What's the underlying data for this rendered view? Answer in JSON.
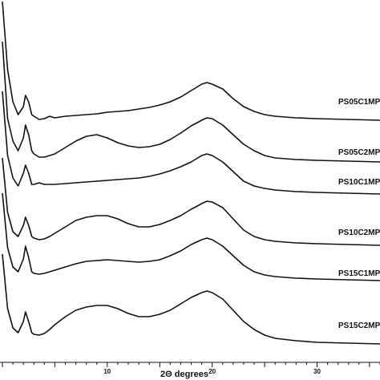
{
  "chart_data": {
    "type": "line",
    "title": "",
    "xlabel": "2Θ degrees",
    "ylabel": "",
    "xlim": [
      0,
      36
    ],
    "x_ticks": [
      10,
      20,
      30
    ],
    "x_tick_labels": [
      "10",
      "20",
      "30"
    ],
    "grid": false,
    "legend": "none",
    "colors": {
      "line": "#111111",
      "background": "#ffffff"
    },
    "series": [
      {
        "name": "PS05C1MP",
        "x": [
          0,
          0.5,
          1,
          1.5,
          2,
          2.2,
          2.5,
          2.8,
          3,
          3.5,
          4,
          4.5,
          5,
          6,
          7,
          8,
          9,
          10,
          11,
          12,
          13,
          14,
          15,
          16,
          17,
          18,
          19,
          19.5,
          20,
          21,
          22,
          23,
          24,
          25,
          26,
          28,
          30,
          33,
          36
        ],
        "y": [
          100,
          40,
          20,
          12,
          17,
          24,
          20,
          12,
          11,
          9,
          9.5,
          11,
          10,
          11,
          11.5,
          12,
          12.5,
          13.5,
          14,
          14.5,
          15.5,
          16.5,
          18,
          20,
          23,
          27,
          31,
          32,
          31,
          28,
          22,
          17,
          14,
          12,
          11,
          10,
          9.5,
          9,
          8.5
        ]
      },
      {
        "name": "PS05C2MP",
        "x": [
          0,
          0.5,
          1,
          1.5,
          2,
          2.2,
          2.5,
          2.8,
          3,
          3.5,
          4,
          4.5,
          5,
          6,
          7,
          8,
          9,
          10,
          11,
          12,
          13,
          14,
          15,
          16,
          17,
          18,
          19,
          19.5,
          20,
          21,
          22,
          23,
          24,
          25,
          26,
          28,
          30,
          33,
          36
        ],
        "y": [
          80,
          32,
          18,
          12,
          20,
          28,
          22,
          12,
          10,
          8,
          8,
          9,
          10,
          14,
          18,
          21,
          22,
          20,
          17,
          15,
          14,
          14.5,
          16,
          19,
          23,
          27.5,
          31,
          32.5,
          32,
          28,
          22,
          16,
          12,
          9,
          7.5,
          6.5,
          6,
          5.5,
          5
        ]
      },
      {
        "name": "PS10C1MP",
        "x": [
          0,
          0.5,
          1,
          1.5,
          2,
          2.2,
          2.5,
          2.8,
          3,
          3.5,
          4,
          4.5,
          5,
          6,
          7,
          8,
          9,
          10,
          11,
          12,
          13,
          14,
          15,
          16,
          17,
          18,
          19,
          19.5,
          20,
          21,
          22,
          23,
          24,
          25,
          26,
          28,
          30,
          33,
          36
        ],
        "y": [
          70,
          30,
          16,
          11,
          19,
          24,
          19,
          12,
          12,
          13,
          12,
          12,
          12,
          12.5,
          13,
          13.5,
          14,
          14.5,
          15,
          15.5,
          16,
          17,
          18.5,
          20.5,
          23,
          26,
          30,
          31,
          30,
          26,
          20,
          14,
          11,
          9.5,
          8.5,
          7.5,
          7,
          6.5,
          6
        ]
      },
      {
        "name": "PS10C2MP",
        "x": [
          0,
          0.5,
          1,
          1.5,
          2,
          2.2,
          2.5,
          2.8,
          3,
          3.5,
          4,
          4.5,
          5,
          6,
          7,
          8,
          9,
          10,
          11,
          12,
          13,
          14,
          15,
          16,
          17,
          18,
          19,
          19.5,
          20,
          21,
          22,
          23,
          24,
          25,
          26,
          28,
          30,
          33,
          36
        ],
        "y": [
          60,
          26,
          14,
          11,
          18,
          23,
          18,
          11,
          10,
          9,
          9.5,
          11,
          13,
          17,
          21,
          23,
          24,
          24,
          22,
          19,
          17,
          17,
          18.5,
          21,
          24,
          28,
          31.5,
          33,
          32.5,
          29,
          22,
          15,
          11,
          9,
          8,
          7,
          6.5,
          6,
          5.5
        ]
      },
      {
        "name": "PS15C1MP",
        "x": [
          0,
          0.5,
          1,
          1.5,
          2,
          2.2,
          2.5,
          2.8,
          3,
          3.5,
          4,
          4.5,
          5,
          6,
          7,
          8,
          9,
          10,
          11,
          12,
          13,
          14,
          15,
          16,
          17,
          18,
          19,
          19.5,
          20,
          21,
          22,
          23,
          24,
          25,
          26,
          28,
          30,
          33,
          36
        ],
        "y": [
          60,
          26,
          14,
          11,
          19,
          27,
          20,
          11,
          10,
          9.5,
          10,
          11,
          12,
          14,
          16,
          17.5,
          18,
          18.5,
          18,
          17.5,
          17,
          17.5,
          18.5,
          21,
          24,
          28,
          31,
          32,
          31,
          27,
          21,
          15,
          11,
          9,
          8,
          7,
          6.5,
          6,
          5.5
        ]
      },
      {
        "name": "PS15C2MP",
        "x": [
          0,
          0.5,
          1,
          1.5,
          2,
          2.2,
          2.5,
          2.8,
          3,
          3.5,
          4,
          4.5,
          5,
          6,
          7,
          8,
          9,
          10,
          11,
          12,
          13,
          14,
          15,
          16,
          17,
          18,
          19,
          19.5,
          20,
          21,
          22,
          23,
          24,
          25,
          26,
          28,
          30,
          33,
          36
        ],
        "y": [
          60,
          26,
          14,
          11,
          18,
          24,
          18,
          11,
          10,
          9.5,
          10.5,
          13,
          16,
          21,
          25,
          27,
          28,
          28,
          26,
          23,
          21,
          21,
          22.5,
          25,
          29,
          33,
          36,
          37,
          36,
          32,
          25,
          18,
          13,
          9.5,
          7.5,
          6,
          5,
          4.5,
          4
        ]
      }
    ]
  }
}
